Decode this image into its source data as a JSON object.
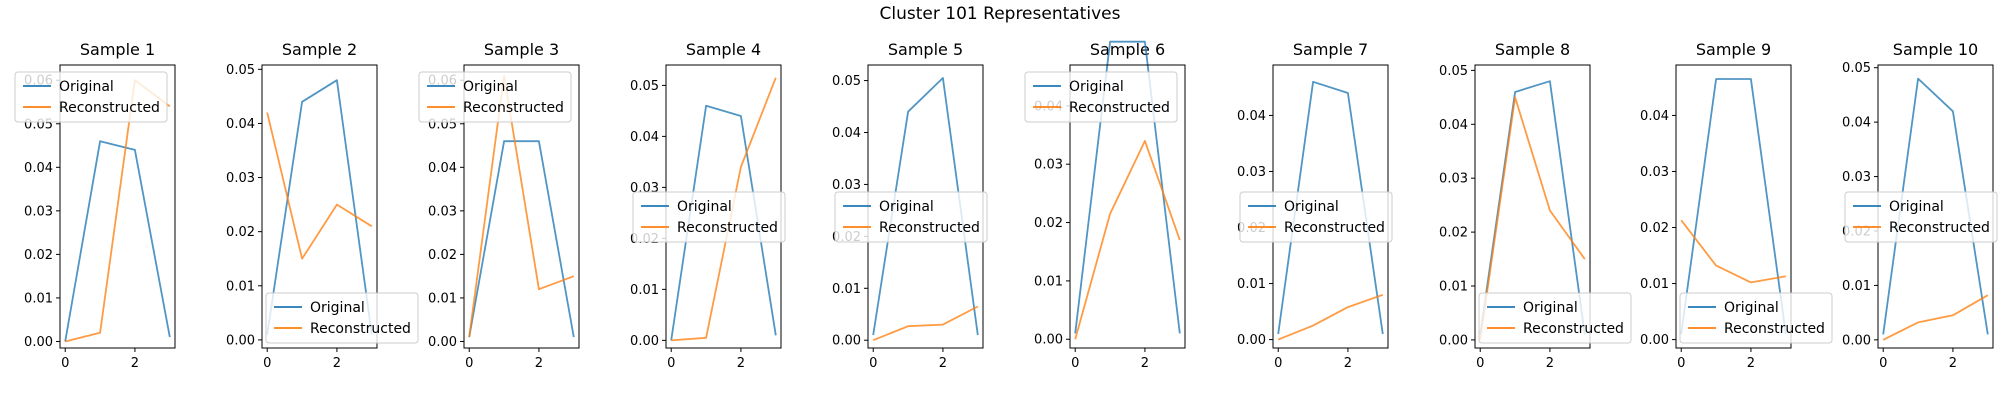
{
  "figure": {
    "suptitle": "Cluster 101 Representatives"
  },
  "colors": {
    "original": "#1f77b4",
    "reconstructed": "#ff7f0e"
  },
  "chart_data": [
    {
      "type": "line",
      "title": "Sample 1",
      "x": [
        0,
        1,
        2,
        3
      ],
      "ylim": [
        -0.0015,
        0.0635
      ],
      "yticks": [
        0.0,
        0.01,
        0.02,
        0.03,
        0.04,
        0.05,
        0.06
      ],
      "yticklabels": [
        "0.00",
        "0.01",
        "0.02",
        "0.03",
        "0.04",
        "0.05",
        "0.06"
      ],
      "xticks": [
        0,
        2
      ],
      "legend": "upper left",
      "series": [
        {
          "name": "Original",
          "values": [
            0.0,
            0.046,
            0.044,
            0.001
          ]
        },
        {
          "name": "Reconstructed",
          "values": [
            0.0,
            0.002,
            0.06,
            0.054
          ]
        }
      ]
    },
    {
      "type": "line",
      "title": "Sample 2",
      "x": [
        0,
        1,
        2,
        3
      ],
      "ylim": [
        -0.0015,
        0.0508
      ],
      "yticks": [
        0.0,
        0.01,
        0.02,
        0.03,
        0.04,
        0.05
      ],
      "yticklabels": [
        "0.00",
        "0.01",
        "0.02",
        "0.03",
        "0.04",
        "0.05"
      ],
      "xticks": [
        0,
        2
      ],
      "legend": "lower right",
      "series": [
        {
          "name": "Original",
          "values": [
            0.001,
            0.044,
            0.048,
            0.001
          ]
        },
        {
          "name": "Reconstructed",
          "values": [
            0.042,
            0.015,
            0.025,
            0.021
          ]
        }
      ]
    },
    {
      "type": "line",
      "title": "Sample 3",
      "x": [
        0,
        1,
        2,
        3
      ],
      "ylim": [
        -0.0015,
        0.0635
      ],
      "yticks": [
        0.0,
        0.01,
        0.02,
        0.03,
        0.04,
        0.05,
        0.06
      ],
      "yticklabels": [
        "0.00",
        "0.01",
        "0.02",
        "0.03",
        "0.04",
        "0.05",
        "0.06"
      ],
      "xticks": [
        0,
        2
      ],
      "legend": "upper left",
      "series": [
        {
          "name": "Original",
          "values": [
            0.001,
            0.046,
            0.046,
            0.001
          ]
        },
        {
          "name": "Reconstructed",
          "values": [
            0.001,
            0.061,
            0.012,
            0.015
          ]
        }
      ]
    },
    {
      "type": "line",
      "title": "Sample 4",
      "x": [
        0,
        1,
        2,
        3
      ],
      "ylim": [
        -0.0015,
        0.054
      ],
      "yticks": [
        0.0,
        0.01,
        0.02,
        0.03,
        0.04,
        0.05
      ],
      "yticklabels": [
        "0.00",
        "0.01",
        "0.02",
        "0.03",
        "0.04",
        "0.05"
      ],
      "xticks": [
        0,
        2
      ],
      "legend": "center left",
      "series": [
        {
          "name": "Original",
          "values": [
            0.0,
            0.046,
            0.044,
            0.001
          ]
        },
        {
          "name": "Reconstructed",
          "values": [
            0.0,
            0.0005,
            0.034,
            0.0515
          ]
        }
      ]
    },
    {
      "type": "line",
      "title": "Sample 5",
      "x": [
        0,
        1,
        2,
        3
      ],
      "ylim": [
        -0.0015,
        0.053
      ],
      "yticks": [
        0.0,
        0.01,
        0.02,
        0.03,
        0.04,
        0.05
      ],
      "yticklabels": [
        "0.00",
        "0.01",
        "0.02",
        "0.03",
        "0.04",
        "0.05"
      ],
      "xticks": [
        0,
        2
      ],
      "legend": "center left",
      "series": [
        {
          "name": "Original",
          "values": [
            0.001,
            0.044,
            0.0505,
            0.001
          ]
        },
        {
          "name": "Reconstructed",
          "values": [
            0.0,
            0.0027,
            0.003,
            0.0065
          ]
        }
      ]
    },
    {
      "type": "line",
      "title": "Sample 6",
      "x": [
        0,
        1,
        2,
        3
      ],
      "ylim": [
        -0.0015,
        0.047
      ],
      "yticks": [
        0.0,
        0.01,
        0.02,
        0.03,
        0.04
      ],
      "yticklabels": [
        "0.00",
        "0.01",
        "0.02",
        "0.03",
        "0.04"
      ],
      "xticks": [
        0,
        2
      ],
      "legend": "upper left",
      "series": [
        {
          "name": "Original",
          "values": [
            0.001,
            0.051,
            0.051,
            0.001
          ]
        },
        {
          "name": "Reconstructed",
          "values": [
            0.0,
            0.0215,
            0.034,
            0.017
          ]
        }
      ]
    },
    {
      "type": "line",
      "title": "Sample 7",
      "x": [
        0,
        1,
        2,
        3
      ],
      "ylim": [
        -0.0015,
        0.049
      ],
      "yticks": [
        0.0,
        0.01,
        0.02,
        0.03,
        0.04
      ],
      "yticklabels": [
        "0.00",
        "0.01",
        "0.02",
        "0.03",
        "0.04"
      ],
      "xticks": [
        0,
        2
      ],
      "legend": "center left",
      "series": [
        {
          "name": "Original",
          "values": [
            0.001,
            0.046,
            0.044,
            0.001
          ]
        },
        {
          "name": "Reconstructed",
          "values": [
            0.0,
            0.0025,
            0.0058,
            0.008
          ]
        }
      ]
    },
    {
      "type": "line",
      "title": "Sample 8",
      "x": [
        0,
        1,
        2,
        3
      ],
      "ylim": [
        -0.0015,
        0.051
      ],
      "yticks": [
        0.0,
        0.01,
        0.02,
        0.03,
        0.04,
        0.05
      ],
      "yticklabels": [
        "0.00",
        "0.01",
        "0.02",
        "0.03",
        "0.04",
        "0.05"
      ],
      "xticks": [
        0,
        2
      ],
      "legend": "lower right",
      "series": [
        {
          "name": "Original",
          "values": [
            0.001,
            0.046,
            0.048,
            0.001
          ]
        },
        {
          "name": "Reconstructed",
          "values": [
            0.0,
            0.045,
            0.024,
            0.015
          ]
        }
      ]
    },
    {
      "type": "line",
      "title": "Sample 9",
      "x": [
        0,
        1,
        2,
        3
      ],
      "ylim": [
        -0.0015,
        0.049
      ],
      "yticks": [
        0.0,
        0.01,
        0.02,
        0.03,
        0.04
      ],
      "yticklabels": [
        "0.00",
        "0.01",
        "0.02",
        "0.03",
        "0.04"
      ],
      "xticks": [
        0,
        2
      ],
      "legend": "lower right",
      "series": [
        {
          "name": "Original",
          "values": [
            0.001,
            0.0465,
            0.0465,
            0.001
          ]
        },
        {
          "name": "Reconstructed",
          "values": [
            0.0213,
            0.0132,
            0.0102,
            0.0113
          ]
        }
      ]
    },
    {
      "type": "line",
      "title": "Sample 10",
      "x": [
        0,
        1,
        2,
        3
      ],
      "ylim": [
        -0.0015,
        0.0505
      ],
      "yticks": [
        0.0,
        0.01,
        0.02,
        0.03,
        0.04,
        0.05
      ],
      "yticklabels": [
        "0.00",
        "0.01",
        "0.02",
        "0.03",
        "0.04",
        "0.05"
      ],
      "xticks": [
        0,
        2
      ],
      "legend": "center left",
      "series": [
        {
          "name": "Original",
          "values": [
            0.001,
            0.048,
            0.042,
            0.001
          ]
        },
        {
          "name": "Reconstructed",
          "values": [
            0.0,
            0.0032,
            0.0045,
            0.0082
          ]
        }
      ]
    }
  ]
}
